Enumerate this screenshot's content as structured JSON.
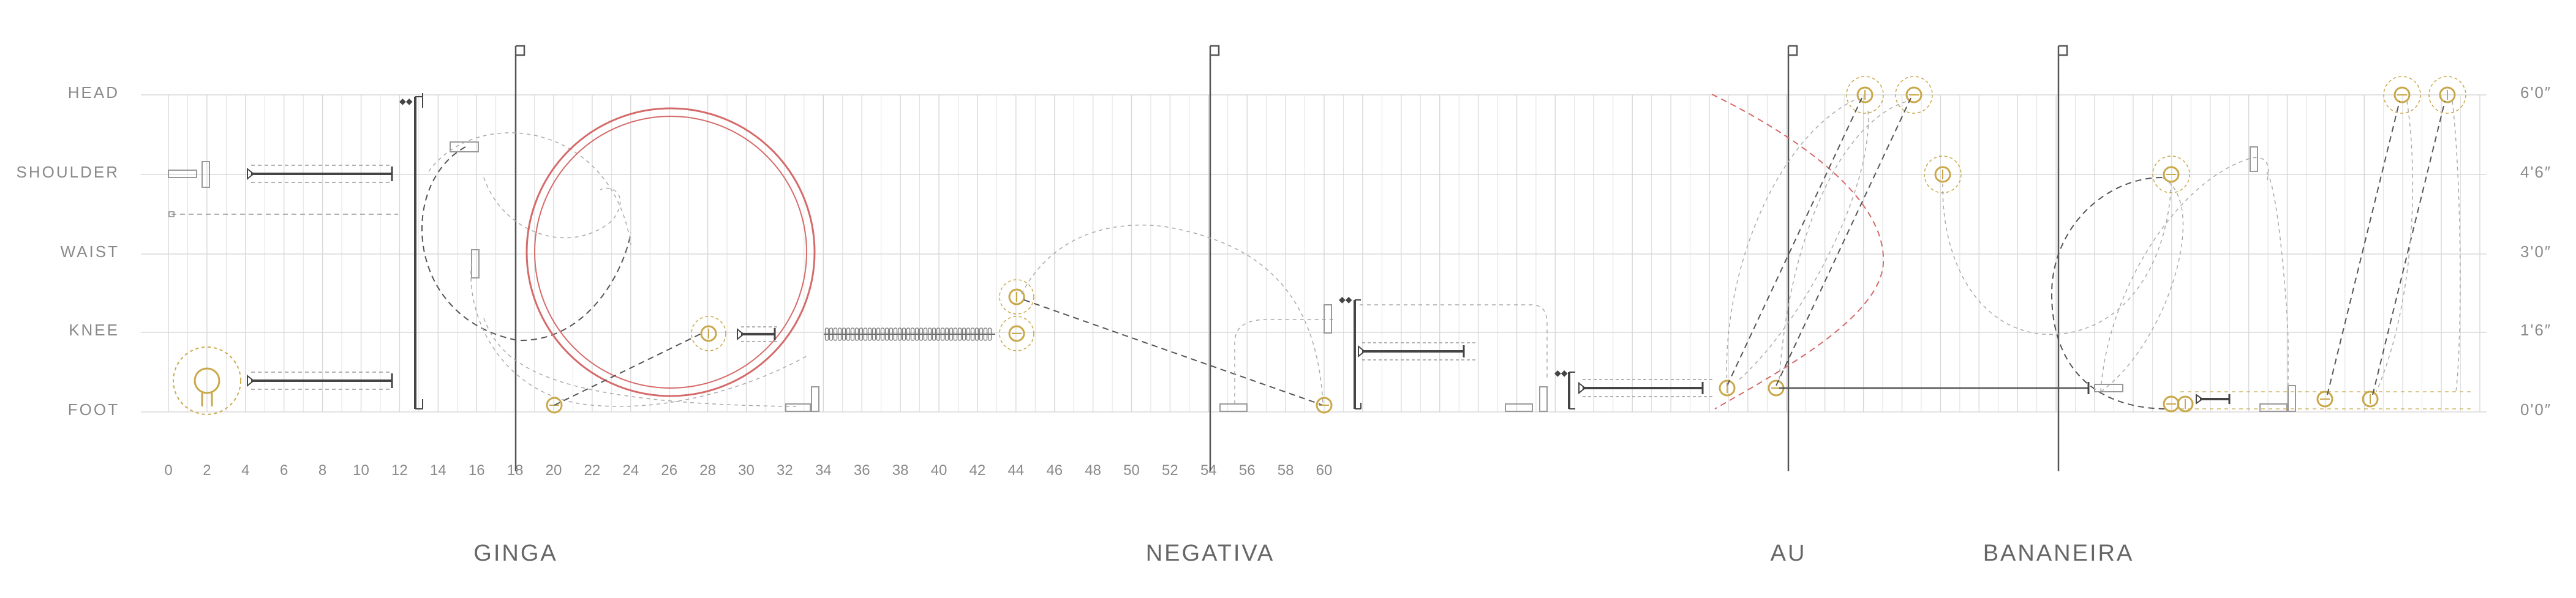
{
  "levels_left": [
    "HEAD",
    "SHOULDER",
    "WAIST",
    "KNEE",
    "FOOT"
  ],
  "levels_right": [
    "6'0″",
    "4'6″",
    "3'0″",
    "1'6″",
    "0'0″"
  ],
  "x_ticks": [
    "0",
    "2",
    "4",
    "6",
    "8",
    "10",
    "12",
    "14",
    "16",
    "18",
    "20",
    "22",
    "24",
    "26",
    "28",
    "30",
    "32",
    "34",
    "36",
    "38",
    "40",
    "42",
    "44",
    "46",
    "48",
    "50",
    "52",
    "54",
    "56",
    "58",
    "60"
  ],
  "moves": [
    "GINGA",
    "NEGATIVA",
    "AU",
    "BANANEIRA"
  ],
  "colors": {
    "grid": "#d8d8d8",
    "label": "#8a8a8a",
    "ink": "#444444",
    "joint": "#c9a84a",
    "circle": "#d56a6a"
  }
}
